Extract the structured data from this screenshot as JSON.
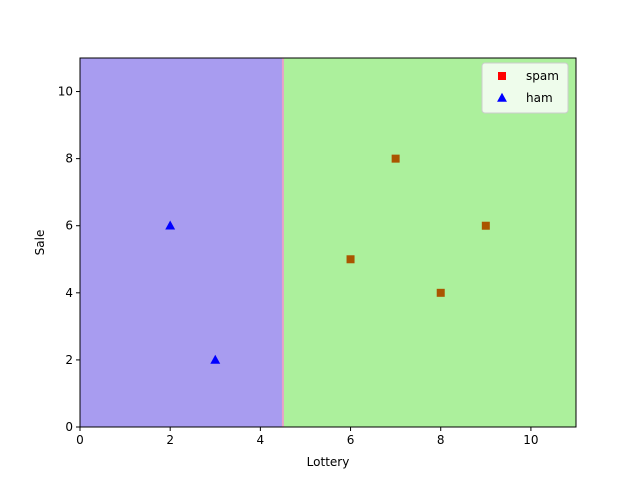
{
  "chart_data": {
    "type": "scatter",
    "title": "",
    "xlabel": "Lottery",
    "ylabel": "Sale",
    "xlim": [
      0,
      11
    ],
    "ylim": [
      0,
      11
    ],
    "xticks": [
      0,
      2,
      4,
      6,
      8,
      10
    ],
    "yticks": [
      0,
      2,
      4,
      6,
      8,
      10
    ],
    "grid": false,
    "legend_position": "top-right",
    "decision_boundary_x": 4.5,
    "regions": [
      {
        "x_from": 0,
        "x_to": 4.5,
        "color": "#a89cf0"
      },
      {
        "x_from": 4.5,
        "x_to": 11,
        "color": "#acf09c"
      }
    ],
    "boundary_color": "#e8a0c8",
    "series": [
      {
        "name": "spam",
        "marker": "square",
        "color": "#ff0000",
        "plotted_color": "#aa5500",
        "points": [
          [
            6,
            5
          ],
          [
            7,
            8
          ],
          [
            8,
            4
          ],
          [
            9,
            6
          ]
        ]
      },
      {
        "name": "ham",
        "marker": "triangle",
        "color": "#0000ff",
        "plotted_color": "#0000ff",
        "points": [
          [
            2,
            6
          ],
          [
            3,
            2
          ]
        ]
      }
    ]
  }
}
